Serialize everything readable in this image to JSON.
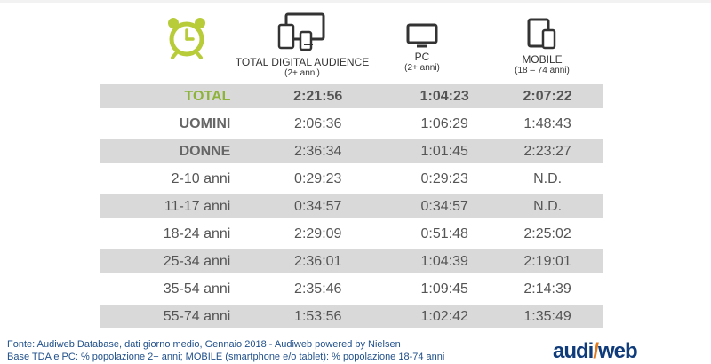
{
  "columns": {
    "total": {
      "title": "TOTAL DIGITAL AUDIENCE",
      "sub": "(2+ anni)"
    },
    "pc": {
      "title": "PC",
      "sub": "(2+ anni)"
    },
    "mobile": {
      "title": "MOBILE",
      "sub": "(18 – 74 anni)"
    }
  },
  "rows": [
    {
      "label": "TOTAL",
      "total": "2:21:56",
      "pc": "1:04:23",
      "mobile": "2:07:22"
    },
    {
      "label": "UOMINI",
      "total": "2:06:36",
      "pc": "1:06:29",
      "mobile": "1:48:43"
    },
    {
      "label": "DONNE",
      "total": "2:36:34",
      "pc": "1:01:45",
      "mobile": "2:23:27"
    },
    {
      "label": "2-10 anni",
      "total": "0:29:23",
      "pc": "0:29:23",
      "mobile": "N.D."
    },
    {
      "label": "11-17 anni",
      "total": "0:34:57",
      "pc": "0:34:57",
      "mobile": "N.D."
    },
    {
      "label": "18-24 anni",
      "total": "2:29:09",
      "pc": "0:51:48",
      "mobile": "2:25:02"
    },
    {
      "label": "25-34 anni",
      "total": "2:36:01",
      "pc": "1:04:39",
      "mobile": "2:19:01"
    },
    {
      "label": "35-54 anni",
      "total": "2:35:46",
      "pc": "1:09:45",
      "mobile": "2:14:39"
    },
    {
      "label": "55-74 anni",
      "total": "1:53:56",
      "pc": "1:02:42",
      "mobile": "1:35:49"
    }
  ],
  "footer": {
    "line1": "Fonte: Audiweb Database, dati giorno medio, Gennaio 2018 - Audiweb powered by Nielsen",
    "line2": "Base TDA e PC: % popolazione 2+ anni; MOBILE (smartphone e/o tablet): % popolazione 18-74 anni"
  },
  "logo": {
    "part1": "audi",
    "part2": "/",
    "part3": "web"
  },
  "icons": {
    "clock": "alarm-clock-icon",
    "devices": "multi-device-icon",
    "pc": "monitor-icon",
    "mobile": "tablet-phone-icon"
  },
  "colors": {
    "accent_green": "#8db33b",
    "shade": "#d9d9d9",
    "footer_blue": "#1f4f8a"
  }
}
